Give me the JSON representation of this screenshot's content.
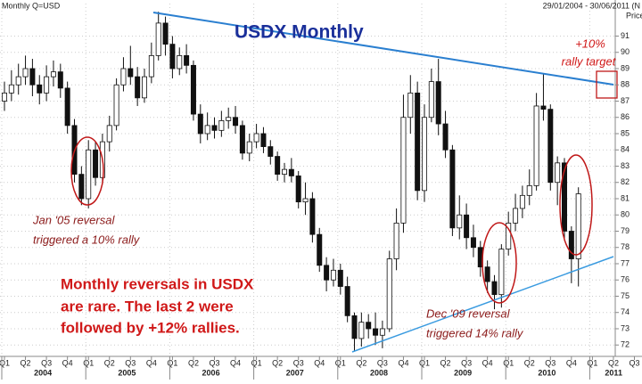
{
  "chart_data": {
    "type": "candlestick",
    "header_left": "Monthly Q=USD",
    "header_right": "29/01/2004 - 30/06/2011 (N",
    "title": "USDX Monthly",
    "price_label": "Price",
    "target_annotation": [
      "+10%",
      "rally target"
    ],
    "jan05_annotation": [
      "Jan '05 reversal",
      "triggered a 10% rally"
    ],
    "main_annotation": [
      "Monthly reversals in USDX",
      "are rare. The last 2 were",
      "followed by +12% rallies."
    ],
    "dec09_annotation": [
      "Dec '09 reversal",
      "triggered 14% rally"
    ],
    "quarters": [
      "Q1",
      "Q2",
      "Q3",
      "Q4"
    ],
    "years": [
      "2004",
      "2005",
      "2006",
      "2007",
      "2008",
      "2009",
      "2010",
      "2011"
    ],
    "ylim": [
      71.3,
      93.0
    ],
    "yticks": [
      72,
      73,
      74,
      75,
      76,
      77,
      78,
      79,
      80,
      81,
      82,
      83,
      84,
      85,
      86,
      87,
      88,
      89,
      90,
      91
    ],
    "grid": true,
    "up_color": "#ffffff",
    "down_color": "#111111",
    "open": [
      87.0,
      87.5,
      88.0,
      88.5,
      89.0,
      88.0,
      87.5,
      88.5,
      88.8,
      87.8,
      85.5,
      82.5,
      81.0,
      84.0,
      82.3,
      84.5,
      85.5,
      88.0,
      89.0,
      88.5,
      87.2,
      88.5,
      89.8,
      91.8,
      90.5,
      89.0,
      89.8,
      89.2,
      86.2,
      85.0,
      85.5,
      85.2,
      85.8,
      86.0,
      85.5,
      83.8,
      84.5,
      85.0,
      84.2,
      83.6,
      82.5,
      82.8,
      82.4,
      80.8,
      81.0,
      78.8,
      76.9,
      76.0,
      76.6,
      75.6,
      73.8,
      72.4,
      73.4,
      73.0,
      72.6,
      73.0,
      77.3,
      79.5,
      86.0,
      87.5,
      81.5,
      86.0,
      88.2,
      85.6,
      84.0,
      79.2,
      80.0,
      78.6,
      78.0,
      76.8,
      75.9,
      75.1,
      77.9,
      79.5,
      80.4,
      81.2,
      81.8,
      86.7,
      86.5,
      82.0,
      83.2,
      79.0,
      77.3
    ],
    "high": [
      88.2,
      88.9,
      89.3,
      89.8,
      89.6,
      88.6,
      89.2,
      89.5,
      89.3,
      88.2,
      85.9,
      83.0,
      84.6,
      84.5,
      85.0,
      86.1,
      88.4,
      89.7,
      90.4,
      89.1,
      89.0,
      90.6,
      92.5,
      92.2,
      91.0,
      90.3,
      90.5,
      89.5,
      86.8,
      86.3,
      86.0,
      86.4,
      86.6,
      86.7,
      85.8,
      85.0,
      85.6,
      85.4,
      84.6,
      83.9,
      83.2,
      83.5,
      82.7,
      82.0,
      81.4,
      79.2,
      77.4,
      77.3,
      77.0,
      76.2,
      74.0,
      74.0,
      73.9,
      74.0,
      73.5,
      77.8,
      80.4,
      87.4,
      88.6,
      88.2,
      86.8,
      89.0,
      89.6,
      86.4,
      84.3,
      81.2,
      80.7,
      79.4,
      78.4,
      77.2,
      76.3,
      78.2,
      80.2,
      81.3,
      81.8,
      82.8,
      87.5,
      88.7,
      86.8,
      83.6,
      83.5,
      79.3,
      81.7
    ],
    "low": [
      86.4,
      87.0,
      87.4,
      88.0,
      87.3,
      86.8,
      87.0,
      87.9,
      87.2,
      85.0,
      82.0,
      80.6,
      80.4,
      81.8,
      81.9,
      83.9,
      85.2,
      87.6,
      88.0,
      86.7,
      86.9,
      88.1,
      89.5,
      89.8,
      88.4,
      88.6,
      88.7,
      85.8,
      84.4,
      84.6,
      84.7,
      84.8,
      85.3,
      85.0,
      83.4,
      83.3,
      84.1,
      83.8,
      83.1,
      82.1,
      82.0,
      82.0,
      80.4,
      80.0,
      78.3,
      76.5,
      75.3,
      75.6,
      75.1,
      73.4,
      71.6,
      71.9,
      72.4,
      72.0,
      71.8,
      72.8,
      76.6,
      78.9,
      85.0,
      80.9,
      80.8,
      85.7,
      84.9,
      83.5,
      78.7,
      78.5,
      77.9,
      77.4,
      76.2,
      75.2,
      74.2,
      74.3,
      77.5,
      79.0,
      79.8,
      80.6,
      81.5,
      85.8,
      81.5,
      80.6,
      78.4,
      75.8,
      75.6
    ],
    "close": [
      87.5,
      88.0,
      88.5,
      89.0,
      88.0,
      87.5,
      88.5,
      88.8,
      87.8,
      85.5,
      82.5,
      81.0,
      84.0,
      82.3,
      84.5,
      85.5,
      88.0,
      89.0,
      88.5,
      87.2,
      88.5,
      89.8,
      91.8,
      90.5,
      89.0,
      89.8,
      89.2,
      86.2,
      85.0,
      85.5,
      85.2,
      85.8,
      86.0,
      85.5,
      83.8,
      84.5,
      85.0,
      84.2,
      83.6,
      82.5,
      82.8,
      82.4,
      80.8,
      81.0,
      78.8,
      76.9,
      76.0,
      76.6,
      75.6,
      73.8,
      72.4,
      73.4,
      73.0,
      72.6,
      73.0,
      77.3,
      79.5,
      86.0,
      87.5,
      81.5,
      86.0,
      88.2,
      85.6,
      84.0,
      79.2,
      80.0,
      78.6,
      78.0,
      76.8,
      75.9,
      75.1,
      77.9,
      79.5,
      80.4,
      81.2,
      81.8,
      86.7,
      86.5,
      82.0,
      83.2,
      79.0,
      77.3,
      81.3
    ]
  }
}
